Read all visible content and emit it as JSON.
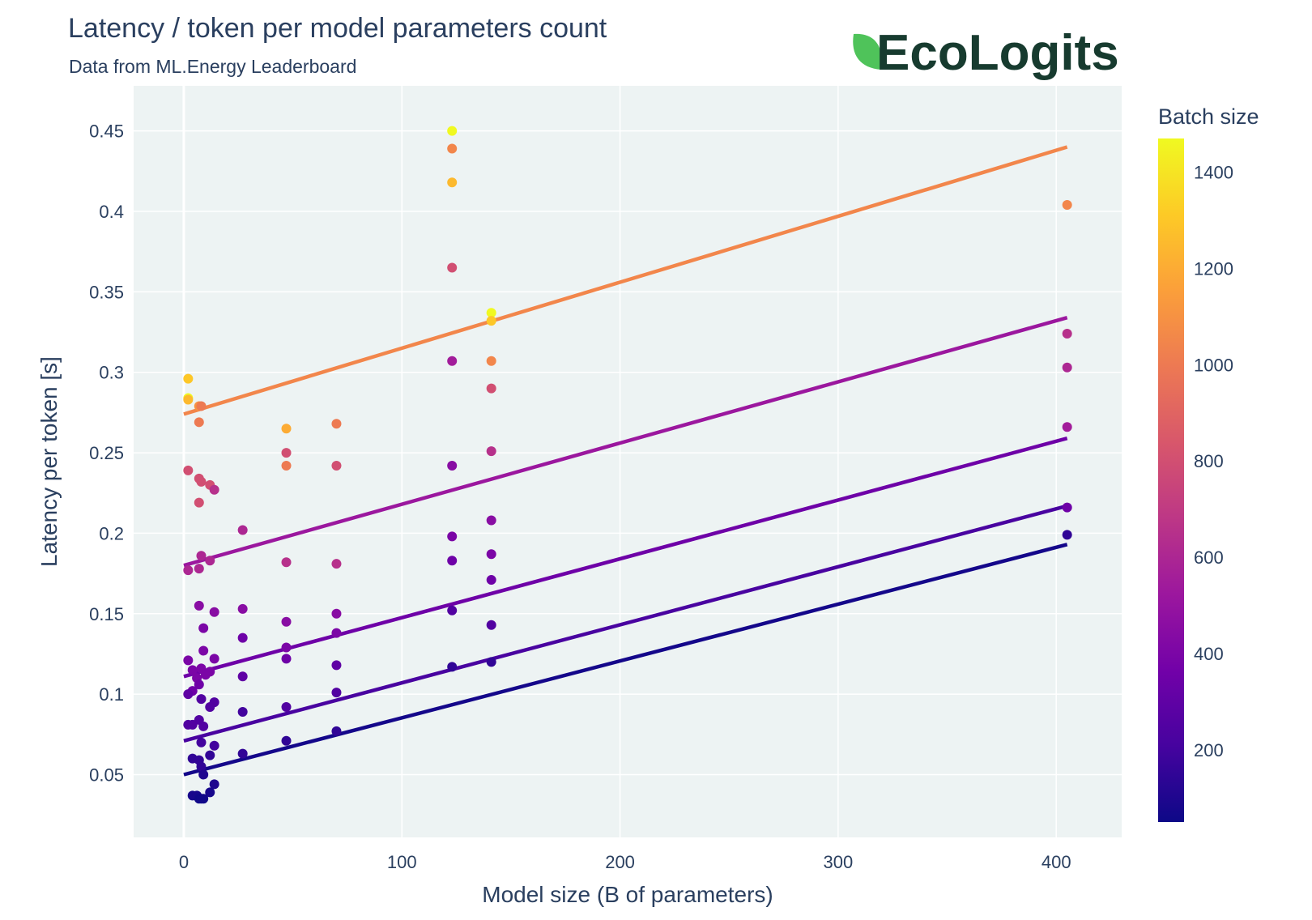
{
  "chart_data": {
    "type": "scatter",
    "title": "Latency / token per model parameters count",
    "subtitle": "Data from ML.Energy Leaderboard",
    "xlabel": "Model size (B of parameters)",
    "ylabel": "Latency per token [s]",
    "xlim": [
      -23,
      430
    ],
    "ylim": [
      0.011,
      0.478
    ],
    "x_ticks": [
      0,
      100,
      200,
      300,
      400
    ],
    "y_ticks": [
      0.05,
      0.1,
      0.15,
      0.2,
      0.25,
      0.3,
      0.35,
      0.4,
      0.45
    ],
    "grid": true,
    "background_color": "#edf3f3",
    "colorbar": {
      "title": "Batch size",
      "range": [
        50,
        1470
      ],
      "ticks": [
        200,
        400,
        600,
        800,
        1000,
        1200,
        1400
      ],
      "colorscale": [
        "#0d0887",
        "#46039f",
        "#7201a8",
        "#9c179e",
        "#bd3786",
        "#d8576b",
        "#ed7953",
        "#fb9f3a",
        "#fdca26",
        "#f0f921"
      ]
    },
    "points": [
      {
        "x": 2,
        "y": 0.296,
        "c": 1300
      },
      {
        "x": 2,
        "y": 0.284,
        "c": 1470
      },
      {
        "x": 2,
        "y": 0.283,
        "c": 1250
      },
      {
        "x": 7,
        "y": 0.279,
        "c": 1100
      },
      {
        "x": 8,
        "y": 0.279,
        "c": 1000
      },
      {
        "x": 7,
        "y": 0.269,
        "c": 1000
      },
      {
        "x": 2,
        "y": 0.239,
        "c": 800
      },
      {
        "x": 7,
        "y": 0.234,
        "c": 800
      },
      {
        "x": 8,
        "y": 0.232,
        "c": 800
      },
      {
        "x": 12,
        "y": 0.23,
        "c": 800
      },
      {
        "x": 14,
        "y": 0.227,
        "c": 650
      },
      {
        "x": 7,
        "y": 0.219,
        "c": 800
      },
      {
        "x": 8,
        "y": 0.186,
        "c": 600
      },
      {
        "x": 12,
        "y": 0.183,
        "c": 600
      },
      {
        "x": 7,
        "y": 0.178,
        "c": 600
      },
      {
        "x": 2,
        "y": 0.177,
        "c": 600
      },
      {
        "x": 27,
        "y": 0.202,
        "c": 600
      },
      {
        "x": 7,
        "y": 0.155,
        "c": 450
      },
      {
        "x": 14,
        "y": 0.151,
        "c": 450
      },
      {
        "x": 9,
        "y": 0.141,
        "c": 400
      },
      {
        "x": 2,
        "y": 0.121,
        "c": 400
      },
      {
        "x": 9,
        "y": 0.127,
        "c": 400
      },
      {
        "x": 14,
        "y": 0.122,
        "c": 400
      },
      {
        "x": 4,
        "y": 0.115,
        "c": 400
      },
      {
        "x": 8,
        "y": 0.116,
        "c": 400
      },
      {
        "x": 12,
        "y": 0.114,
        "c": 400
      },
      {
        "x": 6,
        "y": 0.11,
        "c": 400
      },
      {
        "x": 10,
        "y": 0.112,
        "c": 400
      },
      {
        "x": 7,
        "y": 0.106,
        "c": 350
      },
      {
        "x": 4,
        "y": 0.102,
        "c": 350
      },
      {
        "x": 2,
        "y": 0.1,
        "c": 300
      },
      {
        "x": 8,
        "y": 0.097,
        "c": 250
      },
      {
        "x": 14,
        "y": 0.095,
        "c": 250
      },
      {
        "x": 12,
        "y": 0.092,
        "c": 250
      },
      {
        "x": 2,
        "y": 0.081,
        "c": 250
      },
      {
        "x": 4,
        "y": 0.081,
        "c": 250
      },
      {
        "x": 7,
        "y": 0.084,
        "c": 250
      },
      {
        "x": 9,
        "y": 0.08,
        "c": 250
      },
      {
        "x": 8,
        "y": 0.07,
        "c": 200
      },
      {
        "x": 14,
        "y": 0.068,
        "c": 200
      },
      {
        "x": 12,
        "y": 0.062,
        "c": 150
      },
      {
        "x": 4,
        "y": 0.06,
        "c": 150
      },
      {
        "x": 7,
        "y": 0.059,
        "c": 150
      },
      {
        "x": 8,
        "y": 0.055,
        "c": 150
      },
      {
        "x": 9,
        "y": 0.05,
        "c": 100
      },
      {
        "x": 14,
        "y": 0.044,
        "c": 100
      },
      {
        "x": 12,
        "y": 0.039,
        "c": 80
      },
      {
        "x": 4,
        "y": 0.037,
        "c": 80
      },
      {
        "x": 6,
        "y": 0.037,
        "c": 80
      },
      {
        "x": 7,
        "y": 0.035,
        "c": 60
      },
      {
        "x": 8,
        "y": 0.035,
        "c": 60
      },
      {
        "x": 9,
        "y": 0.035,
        "c": 60
      },
      {
        "x": 27,
        "y": 0.153,
        "c": 450
      },
      {
        "x": 27,
        "y": 0.135,
        "c": 350
      },
      {
        "x": 27,
        "y": 0.111,
        "c": 300
      },
      {
        "x": 27,
        "y": 0.089,
        "c": 200
      },
      {
        "x": 27,
        "y": 0.063,
        "c": 150
      },
      {
        "x": 47,
        "y": 0.265,
        "c": 1200
      },
      {
        "x": 47,
        "y": 0.25,
        "c": 800
      },
      {
        "x": 47,
        "y": 0.242,
        "c": 1000
      },
      {
        "x": 47,
        "y": 0.182,
        "c": 650
      },
      {
        "x": 47,
        "y": 0.145,
        "c": 450
      },
      {
        "x": 47,
        "y": 0.129,
        "c": 400
      },
      {
        "x": 47,
        "y": 0.122,
        "c": 350
      },
      {
        "x": 47,
        "y": 0.092,
        "c": 250
      },
      {
        "x": 47,
        "y": 0.071,
        "c": 150
      },
      {
        "x": 70,
        "y": 0.268,
        "c": 1000
      },
      {
        "x": 70,
        "y": 0.242,
        "c": 800
      },
      {
        "x": 70,
        "y": 0.181,
        "c": 650
      },
      {
        "x": 70,
        "y": 0.15,
        "c": 450
      },
      {
        "x": 70,
        "y": 0.138,
        "c": 400
      },
      {
        "x": 70,
        "y": 0.118,
        "c": 300
      },
      {
        "x": 70,
        "y": 0.101,
        "c": 250
      },
      {
        "x": 70,
        "y": 0.077,
        "c": 150
      },
      {
        "x": 123,
        "y": 0.45,
        "c": 1470
      },
      {
        "x": 123,
        "y": 0.439,
        "c": 1050
      },
      {
        "x": 123,
        "y": 0.418,
        "c": 1250
      },
      {
        "x": 123,
        "y": 0.365,
        "c": 800
      },
      {
        "x": 123,
        "y": 0.307,
        "c": 550
      },
      {
        "x": 123,
        "y": 0.242,
        "c": 450
      },
      {
        "x": 123,
        "y": 0.198,
        "c": 400
      },
      {
        "x": 123,
        "y": 0.183,
        "c": 350
      },
      {
        "x": 123,
        "y": 0.152,
        "c": 250
      },
      {
        "x": 123,
        "y": 0.117,
        "c": 150
      },
      {
        "x": 141,
        "y": 0.337,
        "c": 1470
      },
      {
        "x": 141,
        "y": 0.332,
        "c": 1300
      },
      {
        "x": 141,
        "y": 0.307,
        "c": 1050
      },
      {
        "x": 141,
        "y": 0.29,
        "c": 800
      },
      {
        "x": 141,
        "y": 0.251,
        "c": 650
      },
      {
        "x": 141,
        "y": 0.208,
        "c": 450
      },
      {
        "x": 141,
        "y": 0.187,
        "c": 400
      },
      {
        "x": 141,
        "y": 0.171,
        "c": 350
      },
      {
        "x": 141,
        "y": 0.143,
        "c": 250
      },
      {
        "x": 141,
        "y": 0.12,
        "c": 150
      },
      {
        "x": 405,
        "y": 0.404,
        "c": 1050
      },
      {
        "x": 405,
        "y": 0.324,
        "c": 650
      },
      {
        "x": 405,
        "y": 0.303,
        "c": 600
      },
      {
        "x": 405,
        "y": 0.266,
        "c": 550
      },
      {
        "x": 405,
        "y": 0.216,
        "c": 350
      },
      {
        "x": 405,
        "y": 0.199,
        "c": 150
      }
    ],
    "fit_lines": [
      {
        "x": [
          0,
          405
        ],
        "y": [
          0.274,
          0.44
        ],
        "c": 1050
      },
      {
        "x": [
          0,
          405
        ],
        "y": [
          0.18,
          0.334
        ],
        "c": 520
      },
      {
        "x": [
          0,
          405
        ],
        "y": [
          0.111,
          0.259
        ],
        "c": 350
      },
      {
        "x": [
          0,
          405
        ],
        "y": [
          0.071,
          0.217
        ],
        "c": 220
      },
      {
        "x": [
          0,
          405
        ],
        "y": [
          0.05,
          0.193
        ],
        "c": 70
      }
    ]
  },
  "logo": {
    "text": "EcoLogits",
    "leaf_color": "#4fc35a",
    "text_color": "#173b2f"
  }
}
